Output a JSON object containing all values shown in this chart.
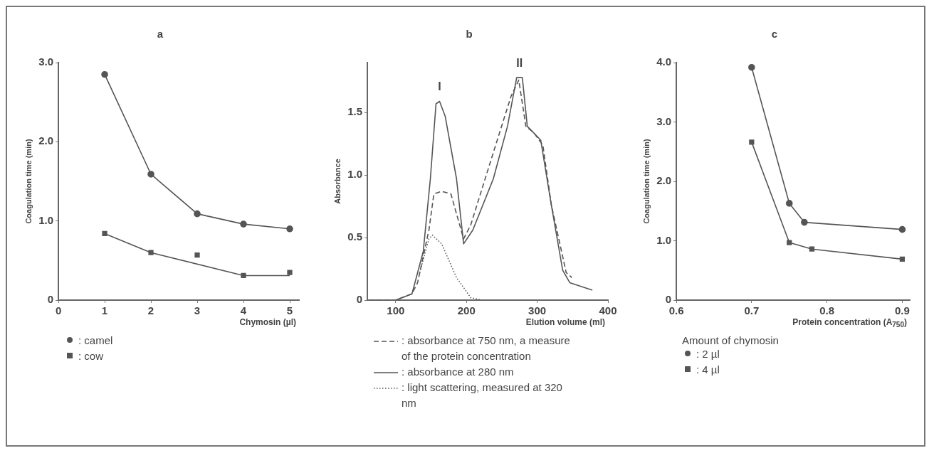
{
  "chart_data": [
    {
      "type": "line",
      "title": "a",
      "xlabel": "Chymosin (µl)",
      "ylabel": "Coagulation time (min)",
      "xlim": [
        0,
        5.2
      ],
      "xticks": [
        0,
        1,
        2,
        3,
        4,
        5
      ],
      "ylim": [
        0,
        3.0
      ],
      "yticks": [
        0,
        {
          "value": 1,
          "label": "1.0"
        },
        {
          "value": 2,
          "label": "2.0"
        },
        {
          "value": 3,
          "label": "3.0"
        }
      ],
      "grid": false,
      "legend": "bottom left",
      "series": [
        {
          "name": ": camel",
          "color": "#555555",
          "marker": "circle",
          "x": [
            1,
            2,
            3,
            4,
            5
          ],
          "values": [
            2.85,
            1.59,
            1.09,
            0.96,
            0.9
          ]
        },
        {
          "name": ": cow",
          "type": "scatter",
          "color": "#555555",
          "marker": "square",
          "x": [
            1,
            2,
            3,
            4,
            5
          ],
          "values": [
            0.84,
            0.6,
            0.57,
            0.31,
            0.35
          ]
        },
        {
          "type": "line",
          "color": "#555555",
          "marker": "none",
          "x": [
            1,
            2,
            4,
            5
          ],
          "values": [
            0.84,
            0.6,
            0.31,
            0.31
          ]
        }
      ]
    },
    {
      "type": "line",
      "title": "b",
      "xlabel": "Elution volume (ml)",
      "ylabel": "Absorbance",
      "xlim": [
        60,
        400
      ],
      "xticks": [
        100,
        200,
        300,
        400
      ],
      "ylim": [
        0,
        1.9
      ],
      "yticks": [
        0,
        0.5,
        {
          "value": 1,
          "label": "1.0"
        },
        1.5
      ],
      "grid": false,
      "legend": "bottom left",
      "marker": "none",
      "annotations": [
        {
          "text": "I",
          "x": 162,
          "y": 1.59
        },
        {
          "text": "II",
          "x": 275,
          "y": 1.78
        }
      ],
      "series": [
        {
          "name": ": absorbance at 750 nm, a measure of the protein concentration",
          "color": "#555555",
          "line_style": "dashed",
          "x": [
            62,
            100,
            123,
            131,
            147,
            154,
            165,
            178,
            196,
            206,
            238,
            263,
            274,
            284,
            295,
            308,
            320,
            341,
            349
          ],
          "values": [
            0,
            0,
            0.05,
            0.14,
            0.56,
            0.85,
            0.87,
            0.85,
            0.49,
            0.6,
            1.18,
            1.63,
            1.76,
            1.39,
            1.34,
            1.24,
            0.76,
            0.22,
            0.18
          ]
        },
        {
          "name": ": absorbance at  280 nm",
          "color": "#555555",
          "line_style": "solid",
          "x": [
            100,
            123,
            139,
            149,
            157,
            162,
            170,
            186,
            196,
            209,
            238,
            258,
            271,
            279,
            286,
            305,
            320,
            336,
            346,
            378
          ],
          "values": [
            0,
            0.05,
            0.39,
            0.97,
            1.57,
            1.59,
            1.47,
            0.97,
            0.45,
            0.56,
            0.97,
            1.39,
            1.78,
            1.78,
            1.39,
            1.28,
            0.76,
            0.24,
            0.14,
            0.08
          ]
        },
        {
          "name": ": light scattering, measured at 320 nm",
          "color": "#555555",
          "line_style": "dotted",
          "x": [
            134,
            147,
            152,
            165,
            186,
            206,
            222
          ],
          "values": [
            0.22,
            0.49,
            0.52,
            0.45,
            0.18,
            0.02,
            0
          ]
        }
      ]
    },
    {
      "type": "line",
      "title": "c",
      "xlabel": "Protein concentration (A$_{750}$)",
      "ylabel": "Coagulation time (min)",
      "xlim": [
        0.6,
        0.91
      ],
      "xticks": [
        0.6,
        0.7,
        0.8,
        0.9
      ],
      "ylim": [
        0,
        4.0
      ],
      "yticks": [
        0,
        {
          "value": 1,
          "label": "1.0"
        },
        {
          "value": 2,
          "label": "2.0"
        },
        {
          "value": 3,
          "label": "3.0"
        },
        {
          "value": 4,
          "label": "4.0"
        }
      ],
      "grid": false,
      "legend": "bottom left",
      "legend_title": "Amount of chymosin",
      "series": [
        {
          "name": ": 2 µl",
          "color": "#555555",
          "marker": "circle",
          "x": [
            0.7,
            0.75,
            0.77,
            0.9
          ],
          "values": [
            3.92,
            1.63,
            1.31,
            1.19
          ]
        },
        {
          "name": ": 4 µl",
          "color": "#555555",
          "marker": "square",
          "x": [
            0.7,
            0.75,
            0.78,
            0.9
          ],
          "values": [
            2.66,
            0.97,
            0.86,
            0.69
          ]
        }
      ]
    }
  ]
}
